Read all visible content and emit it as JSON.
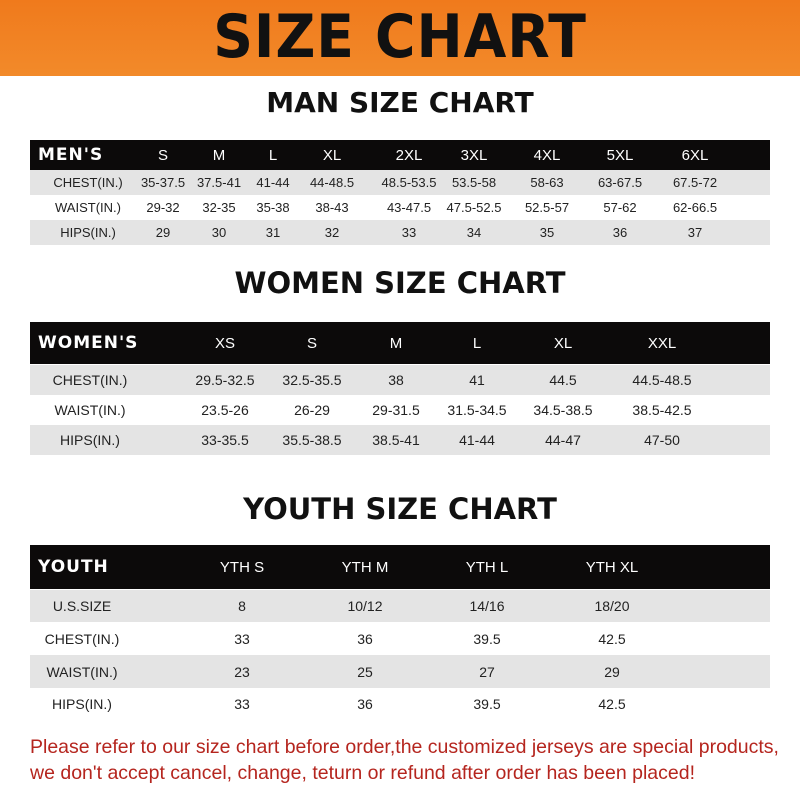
{
  "banner": {
    "title": "SIZE CHART",
    "color": "#f07a1c"
  },
  "men": {
    "title": "MAN SIZE CHART",
    "header": [
      "MEN'S",
      "S",
      "M",
      "L",
      "XL",
      "2XL",
      "3XL",
      "4XL",
      "5XL",
      "6XL"
    ],
    "rows": [
      [
        "CHEST(IN.)",
        "35-37.5",
        "37.5-41",
        "41-44",
        "44-48.5",
        "48.5-53.5",
        "53.5-58",
        "58-63",
        "63-67.5",
        "67.5-72"
      ],
      [
        "WAIST(IN.)",
        "29-32",
        "32-35",
        "35-38",
        "38-43",
        "43-47.5",
        "47.5-52.5",
        "52.5-57",
        "57-62",
        "62-66.5"
      ],
      [
        "HIPS(IN.)",
        "29",
        "30",
        "31",
        "32",
        "33",
        "34",
        "35",
        "36",
        "37"
      ]
    ]
  },
  "women": {
    "title": "WOMEN SIZE CHART",
    "header": [
      "WOMEN'S",
      "XS",
      "S",
      "M",
      "L",
      "XL",
      "XXL"
    ],
    "rows": [
      [
        "CHEST(IN.)",
        "29.5-32.5",
        "32.5-35.5",
        "38",
        "41",
        "44.5",
        "44.5-48.5"
      ],
      [
        "WAIST(IN.)",
        "23.5-26",
        "26-29",
        "29-31.5",
        "31.5-34.5",
        "34.5-38.5",
        "38.5-42.5"
      ],
      [
        "HIPS(IN.)",
        "33-35.5",
        "35.5-38.5",
        "38.5-41",
        "41-44",
        "44-47",
        "47-50"
      ]
    ]
  },
  "youth": {
    "title": "YOUTH SIZE CHART",
    "header": [
      "YOUTH",
      "YTH S",
      "YTH M",
      "YTH L",
      "YTH XL"
    ],
    "rows": [
      [
        "U.S.SIZE",
        "8",
        "10/12",
        "14/16",
        "18/20"
      ],
      [
        "CHEST(IN.)",
        "33",
        "36",
        "39.5",
        "42.5"
      ],
      [
        "WAIST(IN.)",
        "23",
        "25",
        "27",
        "29"
      ],
      [
        "HIPS(IN.)",
        "33",
        "36",
        "39.5",
        "42.5"
      ]
    ]
  },
  "footer": {
    "line1": "Please refer to our size chart before order,the customized jerseys are special products,",
    "line2": "we don't accept cancel, change, teturn or refund after order has been placed!",
    "color": "#b5251e"
  }
}
